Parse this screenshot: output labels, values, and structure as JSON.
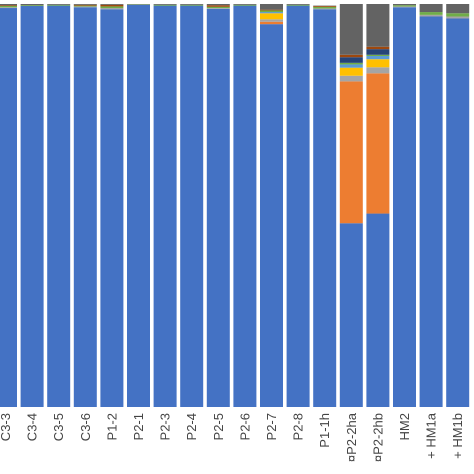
{
  "chart_data": {
    "type": "bar",
    "stacked": true,
    "percent_stacked": true,
    "ylim": [
      0,
      100
    ],
    "grid": false,
    "legend": "none",
    "categories": [
      "C3-3",
      "C3-4",
      "C3-5",
      "C3-6",
      "P1-2",
      "P2-1",
      "P2-3",
      "P2-4",
      "P2-5",
      "P2-6",
      "P2-7",
      "P2-8",
      "P1-1h",
      "¤P2-2ha",
      "¤P2-2hb",
      "HM2",
      "+ HM1a",
      "+ HM1b"
    ],
    "series": [
      {
        "color": "#4472C4",
        "values": [
          99.0,
          99.5,
          99.6,
          99.2,
          98.7,
          99.8,
          99.6,
          99.6,
          98.8,
          99.6,
          95.0,
          99.6,
          98.7,
          45.6,
          48.0,
          99.2,
          96.9,
          96.4
        ]
      },
      {
        "color": "#ED7D31",
        "values": [
          0.0,
          0.0,
          0.0,
          0.0,
          0.0,
          0.0,
          0.0,
          0.0,
          0.0,
          0.0,
          0.6,
          0.0,
          0.0,
          35.2,
          34.8,
          0.0,
          0.0,
          0.0
        ]
      },
      {
        "color": "#A5A5A5",
        "values": [
          0.2,
          0.0,
          0.0,
          0.2,
          0.3,
          0.0,
          0.0,
          0.0,
          0.2,
          0.0,
          0.6,
          0.0,
          0.2,
          1.4,
          1.5,
          0.2,
          0.4,
          0.5
        ]
      },
      {
        "color": "#FFC000",
        "values": [
          0.0,
          0.0,
          0.0,
          0.0,
          0.0,
          0.0,
          0.0,
          0.0,
          0.0,
          0.0,
          1.5,
          0.0,
          0.0,
          2.0,
          2.0,
          0.0,
          0.0,
          0.0
        ]
      },
      {
        "color": "#5B9BD5",
        "values": [
          0.0,
          0.0,
          0.0,
          0.0,
          0.0,
          0.0,
          0.0,
          0.0,
          0.0,
          0.0,
          0.3,
          0.0,
          0.0,
          0.8,
          0.8,
          0.0,
          0.0,
          0.0
        ]
      },
      {
        "color": "#70AD47",
        "values": [
          0.3,
          0.2,
          0.2,
          0.2,
          0.4,
          0.1,
          0.2,
          0.2,
          0.3,
          0.2,
          0.4,
          0.2,
          0.4,
          0.4,
          0.3,
          0.3,
          0.7,
          0.8
        ]
      },
      {
        "color": "#264478",
        "values": [
          0.0,
          0.0,
          0.0,
          0.0,
          0.0,
          0.0,
          0.0,
          0.0,
          0.0,
          0.0,
          0.0,
          0.0,
          0.0,
          1.4,
          1.4,
          0.0,
          0.0,
          0.0
        ]
      },
      {
        "color": "#9E480E",
        "values": [
          0.2,
          0.0,
          0.0,
          0.2,
          0.4,
          0.0,
          0.0,
          0.0,
          0.4,
          0.0,
          0.2,
          0.0,
          0.2,
          0.6,
          0.6,
          0.0,
          0.0,
          0.0
        ]
      },
      {
        "color": "#636363",
        "values": [
          0.3,
          0.3,
          0.2,
          0.2,
          0.2,
          0.1,
          0.2,
          0.2,
          0.3,
          0.2,
          1.4,
          0.2,
          0.1,
          12.6,
          10.6,
          0.3,
          2.0,
          2.3
        ]
      }
    ]
  }
}
